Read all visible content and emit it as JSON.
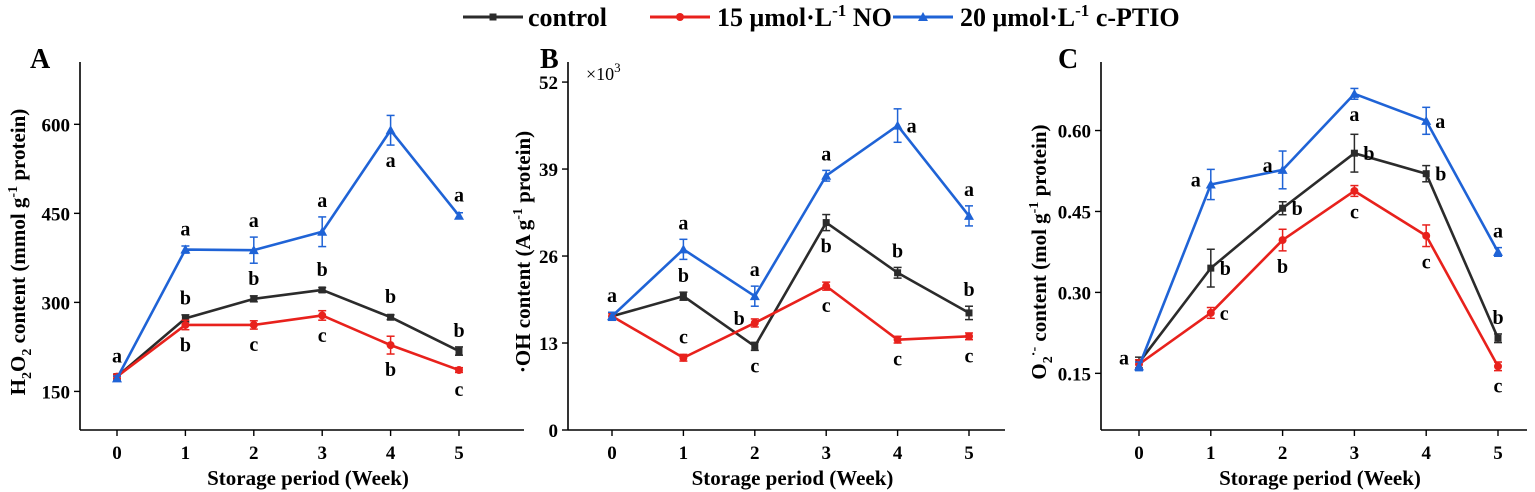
{
  "legend": [
    {
      "label": "control",
      "color": "#2b2b2b",
      "marker": "square"
    },
    {
      "label": "15 μmol·L",
      "sup": "-1",
      "label_tail": " NO",
      "color": "#e8211c",
      "marker": "circle"
    },
    {
      "label": "20 μmol·L",
      "sup": "-1",
      "label_tail": " c-PTIO",
      "color": "#1f63d6",
      "marker": "triangle"
    }
  ],
  "chart_data": [
    {
      "type": "line",
      "panel": "A",
      "title": "",
      "multiplier": "",
      "xlabel": "Storage period (Week)",
      "ylabel_parts": [
        "H",
        {
          "sub": "2"
        },
        "O",
        {
          "sub": "2"
        },
        " content (mmol g",
        {
          "sup": "-1"
        },
        " protein)"
      ],
      "x": [
        0,
        1,
        2,
        3,
        4,
        5
      ],
      "xticks": [
        "0",
        "1",
        "2",
        "3",
        "4",
        "5"
      ],
      "yticks": [
        150,
        300,
        450,
        600
      ],
      "ylim": [
        85,
        705
      ],
      "series": [
        {
          "name": "control",
          "values": [
            175,
            273,
            306,
            321,
            275,
            218
          ],
          "errors": [
            4,
            6,
            5,
            4,
            4,
            7
          ],
          "letters": [
            "a",
            "b",
            "b",
            "b",
            "b",
            "b"
          ],
          "letter_pos": [
            "above",
            "above",
            "above",
            "above",
            "above",
            "above"
          ]
        },
        {
          "name": "15 μmol·L-1 NO",
          "values": [
            175,
            262,
            262,
            278,
            228,
            186
          ],
          "errors": [
            4,
            8,
            7,
            8,
            15,
            4
          ],
          "letters": [
            "",
            "b",
            "c",
            "c",
            "b",
            "c"
          ],
          "letter_pos": [
            "",
            "below",
            "below",
            "below",
            "below",
            "below"
          ]
        },
        {
          "name": "20 μmol·L-1 c-PTIO",
          "values": [
            172,
            389,
            388,
            419,
            590,
            446
          ],
          "errors": [
            4,
            6,
            22,
            25,
            25,
            5
          ],
          "letters": [
            "",
            "a",
            "a",
            "a",
            "a",
            "a"
          ],
          "letter_pos": [
            "",
            "above",
            "above",
            "above",
            "below",
            "above"
          ]
        }
      ]
    },
    {
      "type": "line",
      "panel": "B",
      "title": "",
      "multiplier": "×10",
      "multiplier_sup": "3",
      "xlabel": "Storage period (Week)",
      "ylabel_parts": [
        "·OH content (A g",
        {
          "sup": "-1"
        },
        " protein)"
      ],
      "x": [
        0,
        1,
        2,
        3,
        4,
        5
      ],
      "xticks": [
        "0",
        "1",
        "2",
        "3",
        "4",
        "5"
      ],
      "yticks": [
        0,
        13,
        26,
        39,
        52
      ],
      "ylim": [
        0,
        55
      ],
      "series": [
        {
          "name": "control",
          "values": [
            17,
            20,
            12.5,
            31,
            23.5,
            17.5
          ],
          "errors": [
            0.6,
            0.6,
            0.6,
            1.2,
            0.8,
            1
          ],
          "letters": [
            "a",
            "b",
            "c",
            "b",
            "b",
            "b"
          ],
          "letter_pos": [
            "above",
            "above",
            "below",
            "below",
            "above",
            "above"
          ]
        },
        {
          "name": "15 μmol·L-1 NO",
          "values": [
            17,
            10.8,
            16,
            21.5,
            13.5,
            14
          ],
          "errors": [
            0.5,
            0.5,
            0.6,
            0.6,
            0.5,
            0.5
          ],
          "letters": [
            "",
            "c",
            "b",
            "c",
            "c",
            "c"
          ],
          "letter_pos": [
            "",
            "above",
            "left",
            "below",
            "below",
            "below"
          ]
        },
        {
          "name": "20 μmol·L-1 c-PTIO",
          "values": [
            17,
            27,
            20,
            38,
            45.5,
            32
          ],
          "errors": [
            0.6,
            1.5,
            1.5,
            0.8,
            2.5,
            1.5
          ],
          "letters": [
            "",
            "a",
            "a",
            "a",
            "a",
            "a"
          ],
          "letter_pos": [
            "",
            "above",
            "above",
            "above",
            "right",
            "above"
          ]
        }
      ]
    },
    {
      "type": "line",
      "panel": "C",
      "title": "",
      "multiplier": "",
      "xlabel": "Storage period (Week)",
      "ylabel_parts": [
        "O",
        {
          "sub": "2"
        },
        {
          "sup": "·-"
        },
        " content (mol g",
        {
          "sup": "-1"
        },
        " protein)"
      ],
      "x": [
        0,
        1,
        2,
        3,
        4,
        5
      ],
      "xticks": [
        "0",
        "1",
        "2",
        "3",
        "4",
        "5"
      ],
      "yticks": [
        0.15,
        0.3,
        0.45,
        0.6
      ],
      "yticklabels": [
        "0.15",
        "0.30",
        "0.45",
        "0.60"
      ],
      "ylim": [
        0.045,
        0.727
      ],
      "series": [
        {
          "name": "control",
          "values": [
            0.17,
            0.345,
            0.456,
            0.558,
            0.52,
            0.215
          ],
          "errors": [
            0.01,
            0.035,
            0.012,
            0.035,
            0.015,
            0.008
          ],
          "letters": [
            "a",
            "b",
            "b",
            "b",
            "b",
            "b"
          ],
          "letter_pos": [
            "left",
            "right",
            "right",
            "right",
            "right",
            "above"
          ]
        },
        {
          "name": "15 μmol·L-1 NO",
          "values": [
            0.167,
            0.262,
            0.397,
            0.488,
            0.405,
            0.163
          ],
          "errors": [
            0.008,
            0.01,
            0.02,
            0.01,
            0.02,
            0.008
          ],
          "letters": [
            "",
            "c",
            "b",
            "c",
            "c",
            "c"
          ],
          "letter_pos": [
            "",
            "right",
            "below",
            "below",
            "below",
            "below"
          ]
        },
        {
          "name": "20 μmol·L-1 c-PTIO",
          "values": [
            0.163,
            0.5,
            0.527,
            0.668,
            0.618,
            0.375
          ],
          "errors": [
            0.008,
            0.028,
            0.035,
            0.01,
            0.025,
            0.008
          ],
          "letters": [
            "",
            "a",
            "a",
            "a",
            "a",
            "a"
          ],
          "letter_pos": [
            "",
            "left",
            "left",
            "below",
            "right",
            "above"
          ]
        }
      ]
    }
  ]
}
